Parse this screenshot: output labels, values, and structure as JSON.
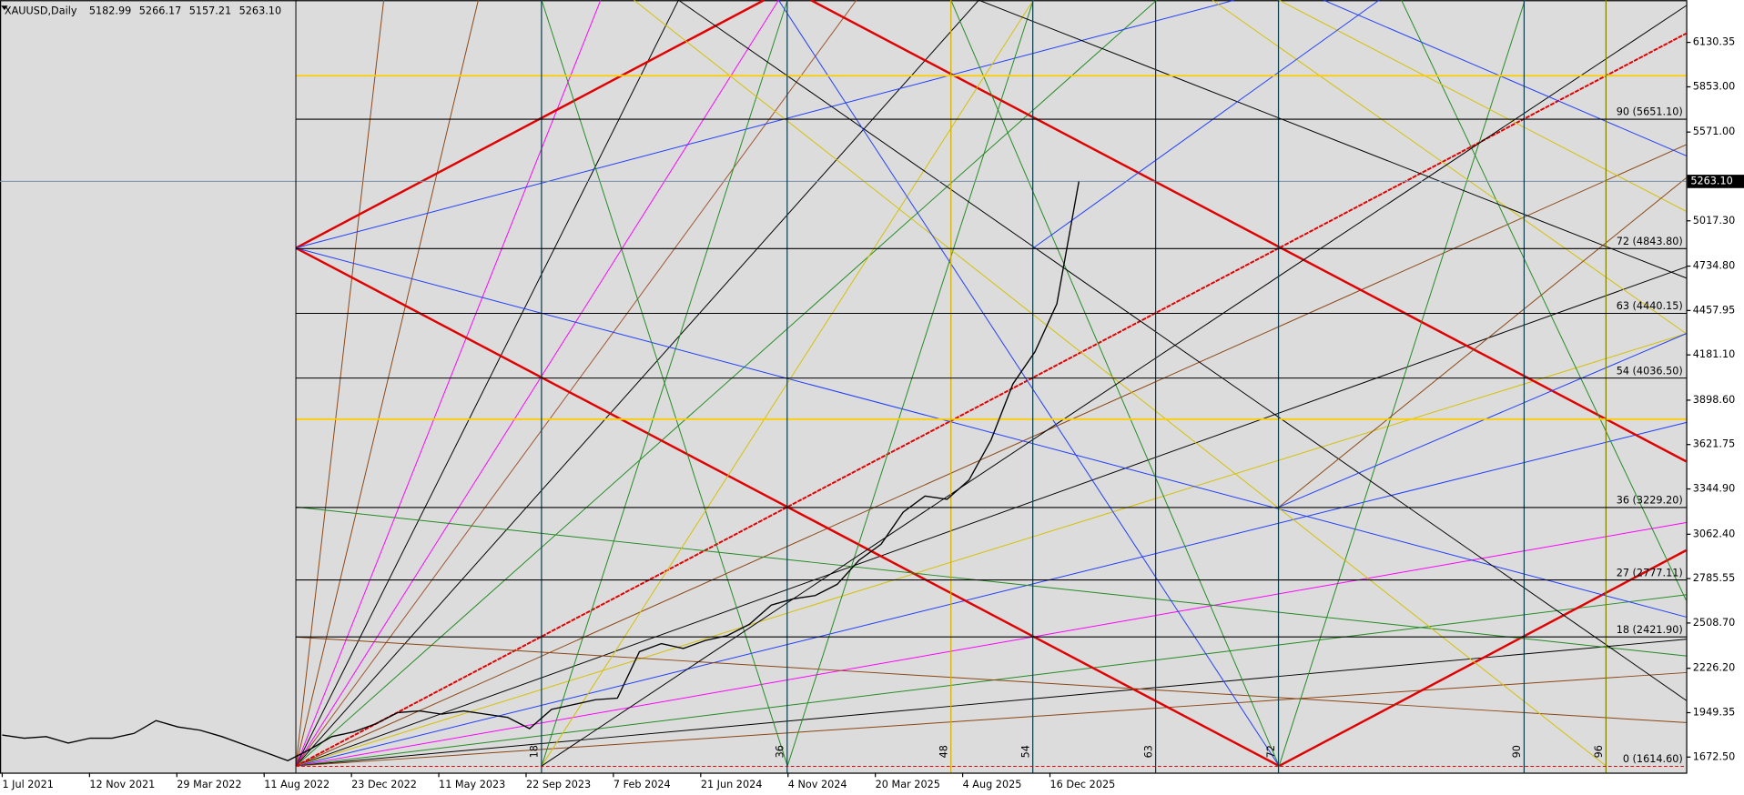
{
  "header": {
    "symbol": "XAUUSD,Daily",
    "ohlc": [
      "5182.99",
      "5266.17",
      "5157.21",
      "5263.10"
    ]
  },
  "price_axis": {
    "ylim": [
      1575.4,
      6393.8
    ],
    "ticks": [
      {
        "value": 6130.35,
        "label": "6130.35"
      },
      {
        "value": 5853.0,
        "label": "5853.00"
      },
      {
        "value": 5571.0,
        "label": "5571.00"
      },
      {
        "value": 5017.3,
        "label": "5017.30"
      },
      {
        "value": 4734.8,
        "label": "4734.80"
      },
      {
        "value": 4457.95,
        "label": "4457.95"
      },
      {
        "value": 4181.1,
        "label": "4181.10"
      },
      {
        "value": 3898.6,
        "label": "3898.60"
      },
      {
        "value": 3621.75,
        "label": "3621.75"
      },
      {
        "value": 3344.9,
        "label": "3344.90"
      },
      {
        "value": 3062.4,
        "label": "3062.40"
      },
      {
        "value": 2785.55,
        "label": "2785.55"
      },
      {
        "value": 2508.7,
        "label": "2508.70"
      },
      {
        "value": 2226.2,
        "label": "2226.20"
      },
      {
        "value": 1949.35,
        "label": "1949.35"
      },
      {
        "value": 1672.5,
        "label": "1672.50"
      }
    ],
    "current_price": {
      "value": 5263.1,
      "label": "5263.10"
    }
  },
  "date_axis": [
    "1 Jul 2021",
    "12 Nov 2021",
    "29 Mar 2022",
    "11 Aug 2022",
    "23 Dec 2022",
    "11 May 2023",
    "22 Sep 2023",
    "7 Feb 2024",
    "21 Jun 2024",
    "4 Nov 2024",
    "20 Mar 2025",
    "4 Aug 2025",
    "16 Dec 2025"
  ],
  "gann_levels": [
    {
      "label": "90 (5651.10)",
      "price": 5651.1
    },
    {
      "label": "72 (4843.80)",
      "price": 4843.8
    },
    {
      "label": "63 (4440.15)",
      "price": 4440.15
    },
    {
      "label": "54 (4036.50)",
      "price": 4036.5
    },
    {
      "label": "36 (3229.20)",
      "price": 3229.2
    },
    {
      "label": "27 (2777.11)",
      "price": 2777.11
    },
    {
      "label": "18 (2421.90)",
      "price": 2421.9
    },
    {
      "label": "0 (1614.60)",
      "price": 1614.6
    }
  ],
  "time_marks": [
    18,
    36,
    48,
    54,
    63,
    72,
    90,
    96
  ],
  "price_series": [
    1810,
    1790,
    1800,
    1760,
    1790,
    1790,
    1820,
    1900,
    1860,
    1840,
    1800,
    1750,
    1700,
    1650,
    1720,
    1800,
    1830,
    1880,
    1950,
    1960,
    1940,
    1960,
    1940,
    1920,
    1850,
    1970,
    2000,
    2030,
    2040,
    2330,
    2380,
    2350,
    2400,
    2430,
    2500,
    2620,
    2660,
    2680,
    2750,
    2900,
    3000,
    3200,
    3300,
    3280,
    3400,
    3650,
    4000,
    4200,
    4500,
    5263
  ]
}
